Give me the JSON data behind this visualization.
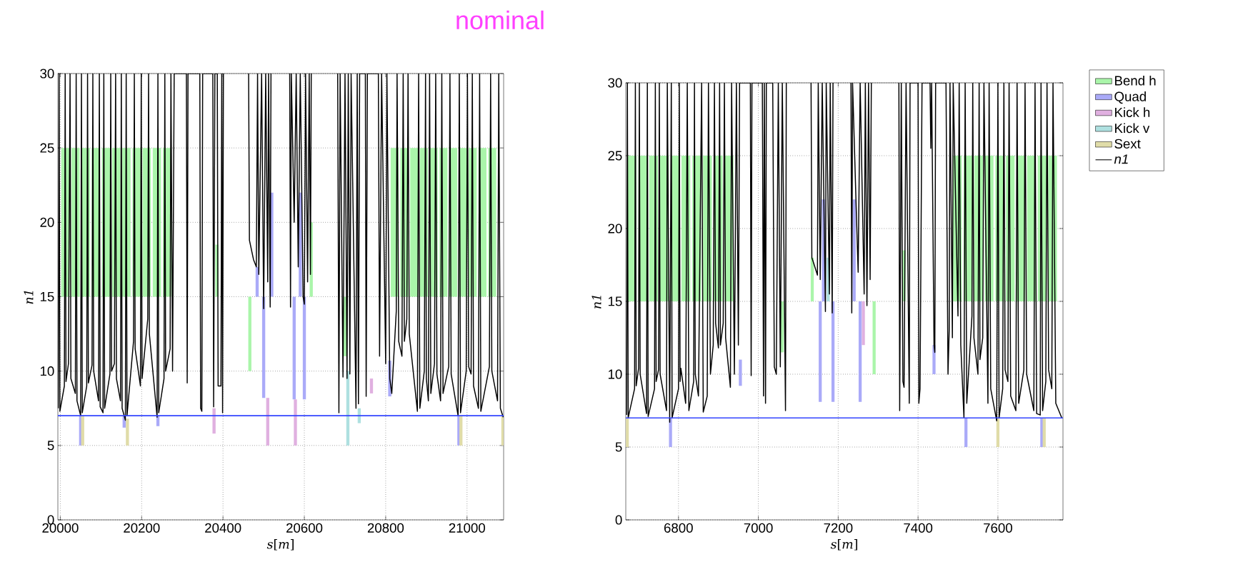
{
  "chart_data": [
    {
      "type": "line",
      "title": "nominal",
      "xlabel": "*s*[*m*]",
      "ylabel": "*n1*",
      "xlim": [
        19994,
        21090
      ],
      "ylim": [
        0,
        30
      ],
      "xticks": [
        20000,
        20200,
        20400,
        20600,
        20800,
        21000
      ],
      "yticks": [
        0,
        5,
        10,
        15,
        20,
        25,
        30
      ],
      "grid": true,
      "ref_lines": [
        {
          "axis": "y",
          "value": 7,
          "color": "#3344ff"
        }
      ],
      "series": [
        {
          "type": "bar",
          "color": "#aaf5aa",
          "x": [
            20012.5,
            20037.5,
            20062.5,
            20087.5,
            20112.5,
            20137.5,
            20162.5,
            20187.5,
            20212.5,
            20237.5,
            20262.5,
            20385,
            20466,
            20617,
            20700,
            20822,
            20846,
            20870,
            20894,
            20918,
            20942,
            20966,
            20990,
            21014,
            21038,
            21062
          ],
          "base": [
            15,
            15,
            15,
            15,
            15,
            15,
            15,
            15,
            15,
            15,
            15,
            15,
            10,
            15,
            11,
            15,
            15,
            15,
            15,
            15,
            15,
            15,
            15,
            15,
            15,
            15
          ],
          "values": [
            10,
            10,
            10,
            10,
            10,
            10,
            10,
            10,
            10,
            10,
            10,
            3.5,
            5,
            5,
            4,
            10,
            10,
            10,
            10,
            10,
            10,
            10,
            10,
            10,
            10,
            10
          ]
        },
        {
          "type": "bar",
          "color": "#aaaaf8",
          "x": [
            20050,
            20157,
            20240,
            20484,
            20500,
            20520,
            20575,
            20590,
            20600,
            20810,
            20980
          ],
          "base": [
            5,
            6.2,
            6.3,
            15,
            8.2,
            15,
            8.1,
            15,
            8.1,
            8.3,
            5
          ],
          "values": [
            2,
            0.8,
            0.7,
            2,
            6.8,
            7,
            6.9,
            7,
            6.9,
            2.4,
            2
          ]
        },
        {
          "type": "bar",
          "color": "#e0b0e0",
          "x": [
            20378,
            20510,
            20578,
            20765
          ],
          "base": [
            5.8,
            5,
            5,
            8.5
          ],
          "values": [
            1.7,
            3.2,
            3.1,
            1
          ]
        },
        {
          "type": "bar",
          "color": "#aee0e0",
          "x": [
            20707,
            20735
          ],
          "base": [
            5,
            6.5
          ],
          "values": [
            5,
            1
          ]
        },
        {
          "type": "bar",
          "color": "#e0dca8",
          "x": [
            20055,
            20165,
            20985,
            21088
          ],
          "base": [
            5,
            5,
            5,
            5
          ],
          "values": [
            2,
            1.8,
            2,
            2
          ]
        },
        {
          "color": "#000000",
          "x": [
            19995,
            19997,
            19999,
            20010,
            20012,
            20014,
            20020,
            20024,
            20026,
            20037,
            20039,
            20041,
            20050,
            20052,
            20054,
            20065,
            20067,
            20069,
            20078,
            20080,
            20082,
            20094,
            20096,
            20098,
            20105,
            20107,
            20109,
            20122,
            20124,
            20126,
            20133,
            20136,
            20138,
            20148,
            20150,
            20152,
            20160,
            20162,
            20164,
            20180,
            20182,
            20184,
            20197,
            20199,
            20201,
            20215,
            20217,
            20219,
            20238,
            20240,
            20242,
            20255,
            20257,
            20259,
            20270,
            20272,
            20276,
            20280,
            20310,
            20312,
            20314,
            20343,
            20345,
            20348,
            20350,
            20375,
            20377,
            20380,
            20386,
            20388,
            20395,
            20397,
            20399,
            20401,
            20402,
            20463,
            20465,
            20475,
            20482,
            20485,
            20488,
            20495,
            20500,
            20505,
            20510,
            20512,
            20516,
            20518,
            20519,
            20564,
            20566,
            20568,
            20575,
            20580,
            20585,
            20590,
            20597,
            20600,
            20603,
            20608,
            20612,
            20615,
            20617,
            20618,
            20682,
            20685,
            20688,
            20695,
            20700,
            20705,
            20708,
            20712,
            20715,
            20727,
            20730,
            20733,
            20736,
            20750,
            20752,
            20755,
            20782,
            20785,
            20790,
            20800,
            20803,
            20810,
            20815,
            20826,
            20828,
            20832,
            20840,
            20843,
            20846,
            20852,
            20855,
            20858,
            20878,
            20881,
            20884,
            20895,
            20898,
            20900,
            20905,
            20908,
            20911,
            20920,
            20923,
            20926,
            20935,
            20938,
            20941,
            20955,
            20958,
            20961,
            20978,
            20981,
            20984,
            20998,
            21001,
            21004,
            21010,
            21013,
            21016,
            21028,
            21031,
            21034,
            21055,
            21058,
            21061,
            21075,
            21078,
            21082,
            21089
          ],
          "values": [
            7.5,
            30,
            7.3,
            9,
            30,
            9.3,
            10.5,
            30,
            9.5,
            8.5,
            30,
            8,
            7,
            30,
            7.2,
            9,
            30,
            9.2,
            10.4,
            30,
            10,
            8,
            30,
            7.6,
            7.2,
            30,
            7.5,
            9.8,
            30,
            10,
            10.5,
            30,
            9.5,
            8,
            30,
            7.5,
            6.7,
            30,
            7,
            12,
            30,
            11.5,
            9,
            30,
            9.5,
            13.5,
            30,
            12.5,
            6.9,
            30,
            7.2,
            9.5,
            30,
            10,
            11.5,
            30,
            10,
            30,
            30,
            9.2,
            30,
            30,
            7.5,
            7.3,
            30,
            30,
            7.6,
            30,
            30,
            9,
            9,
            30,
            7.2,
            30,
            null,
            30,
            18.8,
            17.5,
            17,
            30,
            16.5,
            30,
            14.2,
            30,
            16,
            30,
            14.3,
            30,
            null,
            30,
            14.3,
            30,
            20,
            30,
            17,
            30,
            15,
            14.5,
            30,
            16,
            30,
            16.5,
            30,
            null,
            30,
            7.2,
            30,
            9.6,
            30,
            9.5,
            30,
            9.8,
            30,
            7.5,
            30,
            7.8,
            30,
            30,
            8.3,
            30,
            30,
            11,
            30,
            10.5,
            30,
            9.5,
            8.5,
            14,
            30,
            12,
            11,
            30,
            12,
            13.5,
            30,
            12.5,
            7.3,
            30,
            7.5,
            10,
            30,
            9.5,
            8,
            30,
            8.5,
            10.5,
            30,
            9.8,
            8,
            30,
            8.5,
            10.3,
            30,
            9.8,
            7,
            30,
            7.2,
            10,
            30,
            10.3,
            9.8,
            30,
            9,
            7.5,
            30,
            7.3,
            10.3,
            30,
            10,
            8,
            30,
            7.5,
            6.9
          ]
        }
      ]
    },
    {
      "type": "line",
      "xlabel": "*s*[*m*]",
      "ylabel": "*n1*",
      "xlim": [
        6668,
        7763
      ],
      "ylim": [
        0,
        30
      ],
      "xticks": [
        6800,
        7000,
        7200,
        7400,
        7600
      ],
      "yticks": [
        0,
        5,
        10,
        15,
        20,
        25,
        30
      ],
      "grid": true,
      "legend": "right",
      "ref_lines": [
        {
          "axis": "y",
          "value": 7,
          "color": "#3344ff"
        }
      ],
      "series": [
        {
          "type": "bar",
          "name": "Bend h",
          "color": "#aaf5aa",
          "x": [
            6683.5,
            6710.5,
            6737.5,
            6764.5,
            6791.5,
            6818.5,
            6845.5,
            6872.5,
            6899.5,
            6926.5,
            7060,
            7135,
            7290,
            7365,
            7498.5,
            7525,
            7551.5,
            7578,
            7604.5,
            7631,
            7657.5,
            7684,
            7710.5,
            7737
          ],
          "base": [
            15,
            15,
            15,
            15,
            15,
            15,
            15,
            15,
            15,
            15,
            11.5,
            15,
            10,
            15,
            15,
            15,
            15,
            15,
            15,
            15,
            15,
            15,
            15,
            15
          ],
          "values": [
            10,
            10,
            10,
            10,
            10,
            10,
            10,
            10,
            10,
            10,
            3.5,
            3,
            5,
            3.5,
            10,
            10,
            10,
            10,
            10,
            10,
            10,
            10,
            10,
            10
          ]
        },
        {
          "type": "bar",
          "name": "Quad",
          "color": "#aaaaf8",
          "x": [
            6780,
            6955,
            7155,
            7163,
            7187,
            7240,
            7255,
            7440,
            7520,
            7710
          ],
          "base": [
            5,
            9.2,
            8.1,
            15,
            8.1,
            15,
            8.1,
            10,
            5,
            5
          ],
          "values": [
            2,
            1.8,
            6.9,
            7,
            6.9,
            7,
            6.9,
            2,
            2,
            2
          ]
        },
        {
          "type": "bar",
          "name": "Kick h",
          "color": "#e0b0e0",
          "x": [
            7263
          ],
          "base": [
            12
          ],
          "values": [
            3
          ]
        },
        {
          "type": "bar",
          "name": "Kick v",
          "color": "#aee0e0",
          "x": [
            7175
          ],
          "base": [
            15
          ],
          "values": [
            3
          ]
        },
        {
          "type": "bar",
          "name": "Sext",
          "color": "#e0dca8",
          "x": [
            6672,
            7600,
            7716
          ],
          "base": [
            5,
            5,
            5
          ],
          "values": [
            2,
            2,
            2
          ]
        },
        {
          "name": "*n1*",
          "color": "#000000",
          "x": [
            6670,
            6672,
            6674,
            6690,
            6692,
            6694,
            6700,
            6702,
            6704,
            6720,
            6722,
            6724,
            6740,
            6742,
            6744,
            6750,
            6752,
            6754,
            6770,
            6772,
            6778,
            6782,
            6784,
            6800,
            6802,
            6804,
            6806,
            6818,
            6822,
            6826,
            6838,
            6840,
            6842,
            6850,
            6858,
            6862,
            6872,
            6875,
            6880,
            6887,
            6890,
            6893,
            6900,
            6903,
            6905,
            6912,
            6915,
            6918,
            6930,
            6933,
            6940,
            6945,
            6950,
            6953,
            6980,
            6982,
            6984,
            7010,
            7013,
            7015,
            7018,
            7020,
            7036,
            7040,
            7045,
            7050,
            7055,
            7060,
            7068,
            7070,
            7072,
            7132,
            7134,
            7140,
            7148,
            7150,
            7155,
            7160,
            7168,
            7170,
            7178,
            7180,
            7185,
            7187,
            7188,
            7232,
            7234,
            7236,
            7245,
            7250,
            7255,
            7265,
            7268,
            7272,
            7276,
            7280,
            7283,
            7284,
            7352,
            7354,
            7358,
            7362,
            7365,
            7370,
            7378,
            7380,
            7400,
            7402,
            7405,
            7410,
            7430,
            7432,
            7434,
            7440,
            7442,
            7444,
            7470,
            7475,
            7478,
            7480,
            7486,
            7488,
            7500,
            7503,
            7507,
            7515,
            7518,
            7522,
            7535,
            7537,
            7540,
            7550,
            7553,
            7555,
            7562,
            7565,
            7575,
            7578,
            7582,
            7597,
            7600,
            7603,
            7612,
            7615,
            7618,
            7625,
            7628,
            7632,
            7645,
            7648,
            7652,
            7665,
            7668,
            7672,
            7690,
            7693,
            7697,
            7706,
            7708,
            7712,
            7720,
            7723,
            7727,
            7735,
            7738,
            7745,
            7760
          ],
          "values": [
            7.2,
            30,
            7,
            9,
            30,
            9.2,
            10.4,
            30,
            10,
            7.3,
            30,
            7.1,
            9,
            30,
            9.5,
            10.3,
            30,
            10,
            7.5,
            30,
            6.7,
            30,
            7,
            9,
            30,
            9.5,
            10.4,
            8,
            30,
            7.5,
            9.5,
            30,
            10,
            8.5,
            30,
            7.4,
            8.5,
            30,
            10,
            12,
            30,
            13.5,
            11.8,
            30,
            12,
            13.5,
            30,
            12.5,
            9.1,
            30,
            10,
            30,
            12,
            30,
            30,
            9.9,
            30,
            30,
            8.5,
            30,
            8,
            30,
            30,
            10.5,
            10,
            30,
            10.5,
            30,
            7.5,
            30,
            null,
            30,
            18,
            17.5,
            16.8,
            30,
            16.5,
            30,
            14.3,
            30,
            15.5,
            30,
            14.2,
            30,
            null,
            30,
            14.2,
            30,
            21.5,
            17,
            30,
            15.5,
            30,
            14.7,
            30,
            16.5,
            30,
            null,
            30,
            7.5,
            30,
            9.5,
            9.1,
            30,
            8,
            30,
            30,
            8,
            9,
            30,
            30,
            25.5,
            30,
            12,
            11.5,
            30,
            30,
            10,
            13,
            30,
            12.5,
            30,
            14,
            30,
            12,
            7,
            30,
            8,
            14,
            30,
            12.5,
            10,
            30,
            11,
            12.5,
            30,
            8,
            30,
            9,
            6.8,
            30,
            7,
            9,
            30,
            10.3,
            9.5,
            30,
            8.5,
            7.5,
            30,
            8,
            10.3,
            30,
            10,
            7.5,
            30,
            7.3,
            7.2,
            30,
            7.5,
            9.5,
            30,
            10.3,
            9,
            30,
            8,
            7
          ]
        }
      ]
    }
  ]
}
